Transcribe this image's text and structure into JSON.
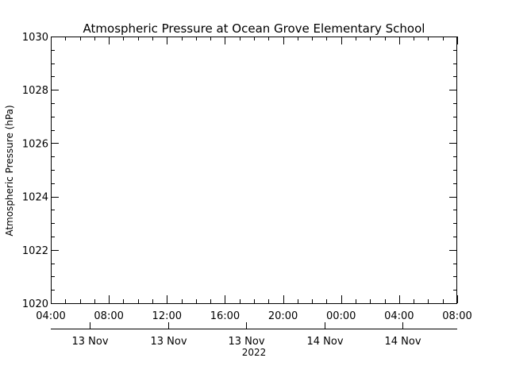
{
  "chart_data": {
    "type": "line",
    "title": "Atmospheric Pressure at Ocean Grove Elementary School",
    "ylabel": "Atmospheric Pressure (hPa)",
    "xlabel": "2022",
    "ylim": [
      1020,
      1030
    ],
    "y_ticks": [
      1020,
      1022,
      1024,
      1026,
      1028,
      1030
    ],
    "x_range": [
      "2022-11-13 04:00",
      "2022-11-14 08:00"
    ],
    "x_tick_labels": [
      "04:00",
      "08:00",
      "12:00",
      "16:00",
      "20:00",
      "00:00",
      "04:00",
      "08:00"
    ],
    "date_labels": [
      "13 Nov",
      "13 Nov",
      "13 Nov",
      "14 Nov",
      "14 Nov"
    ],
    "grid": false,
    "series": [
      {
        "values": []
      }
    ]
  }
}
